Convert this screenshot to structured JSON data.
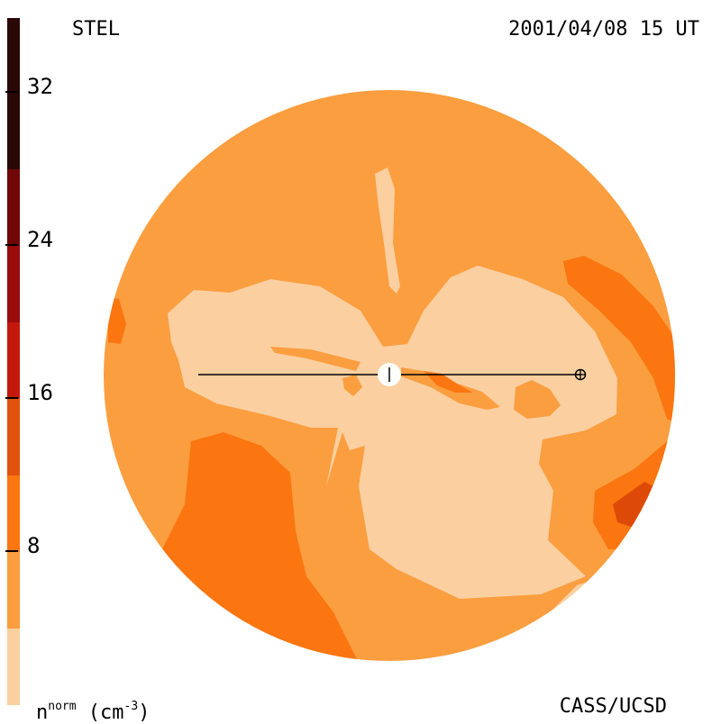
{
  "header": {
    "left_label": "STEL",
    "right_label": "2001/04/08 15 UT"
  },
  "footer": {
    "right_label": "CASS/UCSD",
    "units_label": {
      "base": "n",
      "superscript": "norm",
      "unit_open": " (cm",
      "unit_exp": "-3",
      "unit_close": ")"
    }
  },
  "colorbar": {
    "ticks": [
      "32",
      "24",
      "16",
      "8"
    ],
    "segments": [
      "#fbcfa0",
      "#fb9e3f",
      "#fb7510",
      "#e2520c",
      "#c4180c",
      "#990c0c",
      "#700808",
      "#2b0808"
    ]
  },
  "palette": {
    "pale": "#fbcfa0",
    "base": "#fb9e3f",
    "mid": "#fb7510",
    "dark": "#dd4a08",
    "line": "#000000",
    "sun": "#ffffff"
  },
  "map": {
    "earth_symbol": "earth-symbol",
    "sun_symbol": "sun-disk"
  }
}
